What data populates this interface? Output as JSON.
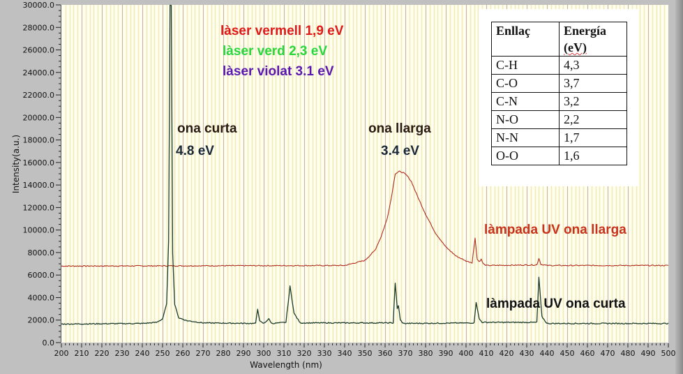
{
  "chart_data": {
    "type": "line",
    "title": "",
    "xlabel": "Wavelength (nm)",
    "ylabel": "Intensity(a.u.)",
    "xlim": [
      200,
      500
    ],
    "ylim": [
      0,
      30000
    ],
    "x_ticks": [
      "200",
      "210",
      "220",
      "230",
      "240",
      "250",
      "260",
      "270",
      "280",
      "290",
      "300",
      "310",
      "320",
      "330",
      "340",
      "350",
      "360",
      "370",
      "380",
      "390",
      "400",
      "410",
      "420",
      "430",
      "440",
      "450",
      "460",
      "470",
      "480",
      "490",
      "500"
    ],
    "y_ticks": [
      "0.0",
      "2000.0",
      "4000.0",
      "6000.0",
      "8000.0",
      "10000.0",
      "12000.0",
      "14000.0",
      "16000.0",
      "18000.0",
      "20000.0",
      "22000.0",
      "24000.0",
      "26000.0",
      "28000.0",
      "30000.0"
    ],
    "grid": {
      "vertical_major_every": 10,
      "vertical_minor_every": 2,
      "horizontal": false
    },
    "series": [
      {
        "name": "làmpada UV ona llarga",
        "color": "#b02a1a",
        "x": [
          200,
          340,
          350,
          355,
          358,
          361,
          363,
          365,
          367,
          369,
          371,
          373,
          376,
          380,
          385,
          390,
          395,
          400,
          403,
          404.5,
          405.5,
          406.5,
          407.5,
          408.5,
          410,
          435,
          436,
          437,
          440,
          500
        ],
        "y": [
          6800,
          6850,
          7300,
          8200,
          9400,
          11000,
          12800,
          15000,
          15200,
          15100,
          14800,
          14300,
          13000,
          11400,
          9700,
          8500,
          7700,
          7250,
          7100,
          9300,
          7400,
          7200,
          7400,
          7000,
          6850,
          6900,
          7500,
          6950,
          6850,
          6850
        ]
      },
      {
        "name": "làmpada UV ona curta",
        "color": "#1a3a2a",
        "x": [
          200,
          240,
          247,
          250,
          252,
          253,
          253.7,
          254.3,
          255,
          256,
          258,
          262,
          270,
          296,
          297,
          298,
          300,
          302.5,
          304,
          311,
          313,
          315,
          318,
          364,
          365,
          366,
          366.6,
          367.5,
          369,
          404,
          405,
          406.5,
          408,
          435,
          436,
          437.5,
          440,
          500
        ],
        "y": [
          1650,
          1700,
          1800,
          2100,
          3400,
          9000,
          30000,
          30000,
          8000,
          3400,
          2200,
          1950,
          1750,
          1700,
          3000,
          1900,
          1700,
          2100,
          1700,
          1800,
          5000,
          2600,
          1750,
          1750,
          5300,
          3000,
          3300,
          2000,
          1700,
          1750,
          3600,
          2100,
          1800,
          1800,
          5800,
          2300,
          1700,
          1700
        ]
      }
    ],
    "annotations": [
      {
        "text": "làser vermell  1,9 eV",
        "color": "#e01818"
      },
      {
        "text": "làser verd  2,3 eV",
        "color": "#28d83a"
      },
      {
        "text": "làser violat 3.1 eV",
        "color": "#5a18b0"
      },
      {
        "text": "ona curta",
        "color": "#2a1a10"
      },
      {
        "text": "4.8 eV",
        "color": "#1a2838"
      },
      {
        "text": "ona llarga",
        "color": "#2a1a10"
      },
      {
        "text": "3.4 eV",
        "color": "#1a2838"
      },
      {
        "text": "làmpada UV ona llarga",
        "color": "#c8321a"
      },
      {
        "text": "làmpada UV ona curta",
        "color": "#111111"
      }
    ],
    "inset_table": {
      "headers": [
        "Enllaç",
        "Energía",
        "(eV)"
      ],
      "rows": [
        [
          "C-H",
          "4,3"
        ],
        [
          "C-O",
          "3,7"
        ],
        [
          "C-N",
          "3,2"
        ],
        [
          "N-O",
          "2,2"
        ],
        [
          "N-N",
          "1,7"
        ],
        [
          "O-O",
          "1,6"
        ]
      ]
    }
  },
  "colors": {
    "plot_bg": "#fffff0",
    "grid_major": "#c9b4a4",
    "grid_minor": "#f1eab8",
    "frame_bg": "#c0c0c0"
  }
}
